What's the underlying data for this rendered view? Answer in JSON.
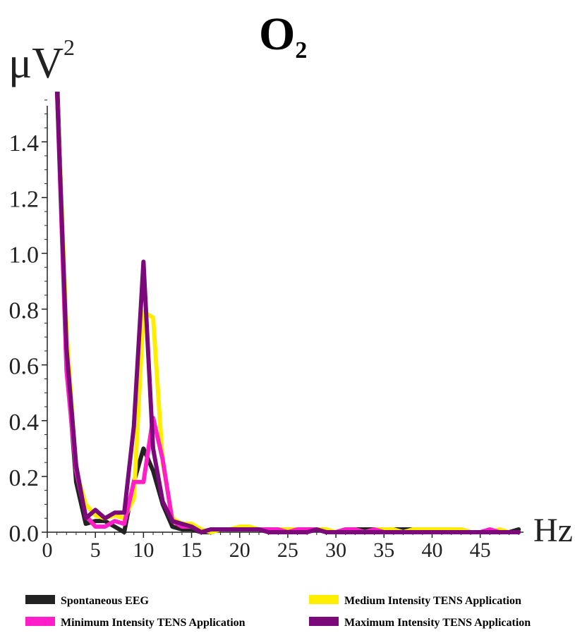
{
  "chart_data": {
    "type": "line",
    "title": "O",
    "title_subscript": "2",
    "ylabel": "μV",
    "ylabel_superscript": "2",
    "xlabel": "Hz",
    "xlim": [
      0,
      49.5
    ],
    "ylim": [
      0,
      1.58
    ],
    "x_ticks": [
      0,
      5,
      10,
      15,
      20,
      25,
      30,
      35,
      40,
      45
    ],
    "x_tick_labels": [
      "0",
      "5",
      "10",
      "15",
      "20",
      "25",
      "30",
      "35",
      "40",
      "45"
    ],
    "y_ticks": [
      0,
      0.2,
      0.4,
      0.6,
      0.8,
      1.0,
      1.2,
      1.4
    ],
    "y_tick_labels": [
      "0.0",
      "0.2",
      "0.4",
      "0.6",
      "0.8",
      "1.0",
      "1.2",
      "1.4"
    ],
    "grid": false,
    "legend_position": "bottom",
    "x": [
      1,
      2,
      3,
      4,
      5,
      6,
      7,
      8,
      9,
      10,
      11,
      12,
      13,
      14,
      15,
      16,
      17,
      18,
      19,
      20,
      21,
      22,
      23,
      24,
      25,
      26,
      27,
      28,
      29,
      30,
      31,
      32,
      33,
      34,
      35,
      36,
      37,
      38,
      39,
      40,
      41,
      42,
      43,
      44,
      45,
      46,
      47,
      48,
      49
    ],
    "series": [
      {
        "name": "Spontaneous EEG",
        "color": "#222222",
        "values": [
          1.65,
          0.62,
          0.18,
          0.03,
          0.04,
          0.04,
          0.02,
          0.0,
          0.18,
          0.3,
          0.22,
          0.1,
          0.02,
          0.01,
          0.01,
          0.0,
          0.0,
          0.01,
          0.01,
          0.01,
          0.01,
          0.01,
          0.01,
          0.0,
          0.01,
          0.0,
          0.01,
          0.01,
          0.0,
          0.0,
          0.01,
          0.01,
          0.01,
          0.01,
          0.01,
          0.01,
          0.01,
          0.01,
          0.01,
          0.0,
          0.01,
          0.01,
          0.01,
          0.0,
          0.0,
          0.0,
          0.0,
          0.0,
          0.01
        ]
      },
      {
        "name": "Medium Intensity TENS Application",
        "color": "#ffee00",
        "values": [
          1.6,
          0.72,
          0.22,
          0.1,
          0.06,
          0.05,
          0.06,
          0.05,
          0.12,
          0.79,
          0.77,
          0.25,
          0.05,
          0.03,
          0.03,
          0.01,
          0.0,
          0.01,
          0.01,
          0.02,
          0.02,
          0.01,
          0.01,
          0.01,
          0.01,
          0.01,
          0.01,
          0.01,
          0.01,
          0.0,
          0.01,
          0.01,
          0.0,
          0.01,
          0.01,
          0.01,
          0.0,
          0.01,
          0.01,
          0.01,
          0.01,
          0.01,
          0.01,
          0.0,
          0.0,
          0.0,
          0.01,
          0.0,
          0.0
        ]
      },
      {
        "name": "Minimum Intensity TENS Application",
        "color": "#ff1ec8",
        "values": [
          1.6,
          0.58,
          0.22,
          0.06,
          0.02,
          0.02,
          0.04,
          0.03,
          0.18,
          0.18,
          0.41,
          0.26,
          0.04,
          0.02,
          0.02,
          0.0,
          0.01,
          0.01,
          0.01,
          0.01,
          0.01,
          0.01,
          0.01,
          0.01,
          0.0,
          0.01,
          0.01,
          0.01,
          0.0,
          0.0,
          0.01,
          0.01,
          0.0,
          0.01,
          0.0,
          0.0,
          0.0,
          0.0,
          0.0,
          0.0,
          0.0,
          0.0,
          0.0,
          0.0,
          0.0,
          0.01,
          0.0,
          0.0,
          0.0
        ]
      },
      {
        "name": "Maximum Intensity TENS Application",
        "color": "#7a0a7a",
        "values": [
          1.6,
          0.66,
          0.24,
          0.05,
          0.08,
          0.05,
          0.07,
          0.07,
          0.38,
          0.97,
          0.3,
          0.11,
          0.04,
          0.03,
          0.02,
          0.0,
          0.01,
          0.01,
          0.01,
          0.01,
          0.01,
          0.01,
          0.0,
          0.0,
          0.0,
          0.0,
          0.0,
          0.01,
          0.0,
          0.0,
          0.0,
          0.0,
          0.0,
          0.0,
          0.0,
          0.0,
          0.0,
          0.0,
          0.0,
          0.0,
          0.0,
          0.0,
          0.0,
          0.0,
          0.0,
          0.0,
          0.0,
          0.0,
          0.0
        ]
      }
    ],
    "legend": [
      {
        "label": "Spontaneous EEG",
        "color": "#222222"
      },
      {
        "label": "Medium Intensity TENS Application",
        "color": "#ffee00"
      },
      {
        "label": "Minimum Intensity TENS Application",
        "color": "#ff1ec8"
      },
      {
        "label": "Maximum Intensity TENS Application",
        "color": "#7a0a7a"
      }
    ]
  }
}
